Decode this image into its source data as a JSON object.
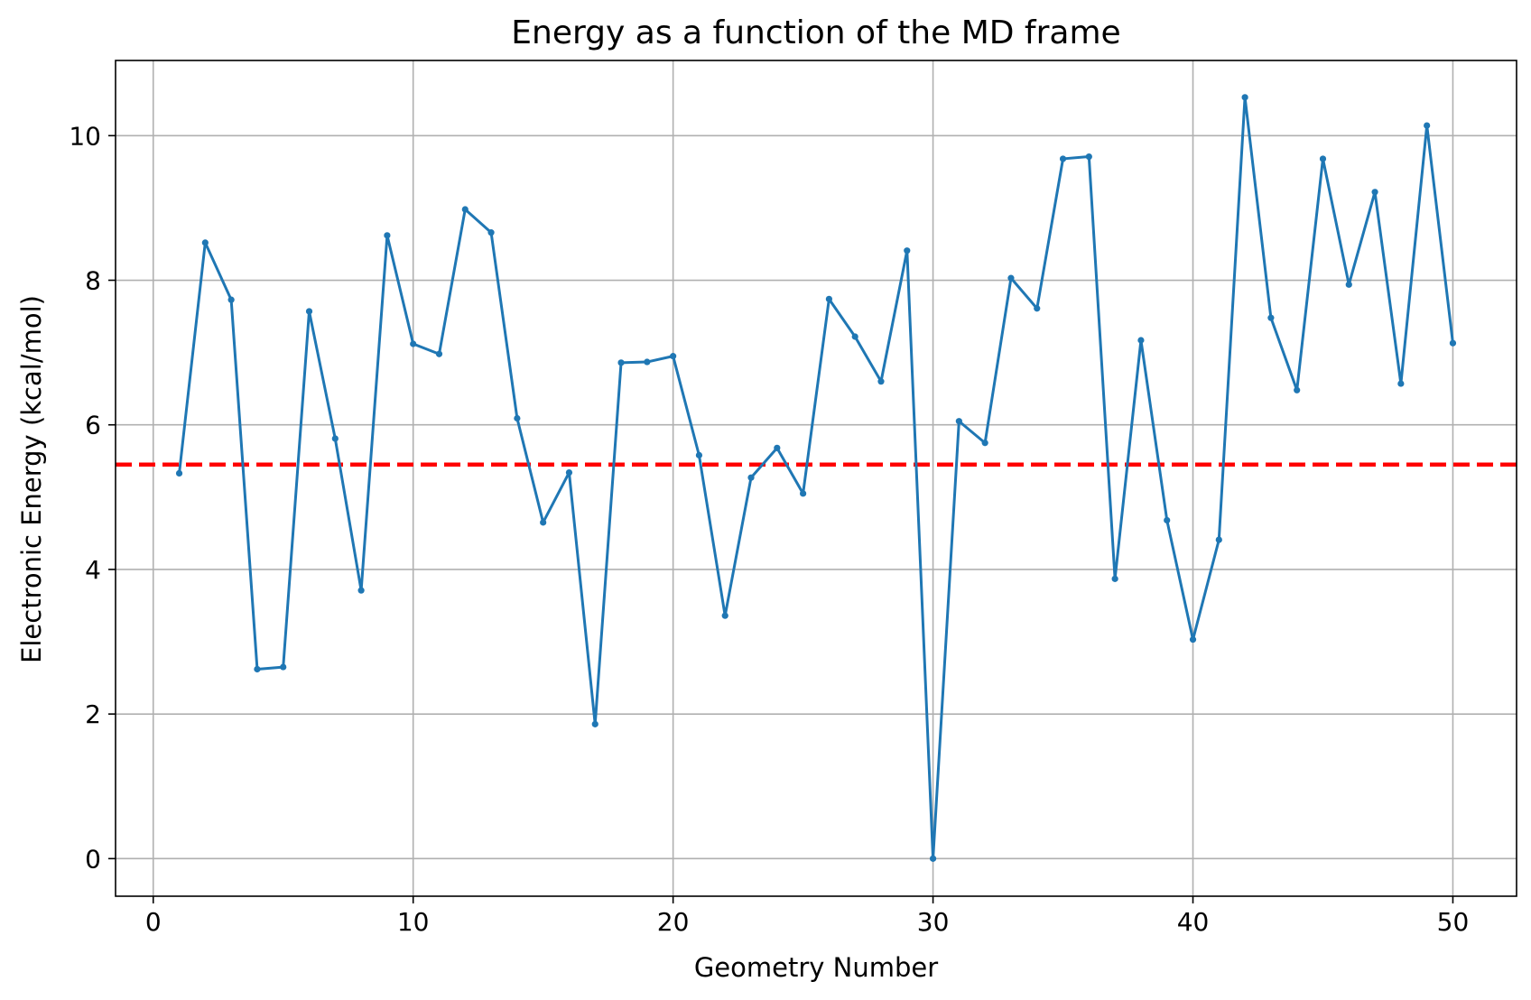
{
  "chart_data": {
    "type": "line",
    "title": "Energy as a function of the MD frame",
    "xlabel": "Geometry Number",
    "ylabel": "Electronic Energy (kcal/mol)",
    "xlim": [
      -1.45,
      52.45
    ],
    "ylim": [
      -0.52,
      11.04
    ],
    "x_ticks": [
      0,
      10,
      20,
      30,
      40,
      50
    ],
    "y_ticks": [
      0,
      2,
      4,
      6,
      8,
      10
    ],
    "grid": true,
    "series": [
      {
        "x": [
          1,
          2,
          3,
          4,
          5,
          6,
          7,
          8,
          9,
          10,
          11,
          12,
          13,
          14,
          15,
          16,
          17,
          18,
          19,
          20,
          21,
          22,
          23,
          24,
          25,
          26,
          27,
          28,
          29,
          30,
          31,
          32,
          33,
          34,
          35,
          36,
          37,
          38,
          39,
          40,
          41,
          42,
          43,
          44,
          45,
          46,
          47,
          48,
          49,
          50
        ],
        "y": [
          5.33,
          8.52,
          7.73,
          2.62,
          2.65,
          7.57,
          5.81,
          3.71,
          8.62,
          7.12,
          6.98,
          8.98,
          8.66,
          6.09,
          4.65,
          5.34,
          1.86,
          6.86,
          6.87,
          6.95,
          5.58,
          3.36,
          5.27,
          5.68,
          5.05,
          7.74,
          7.22,
          6.6,
          8.41,
          0.0,
          6.05,
          5.75,
          8.03,
          7.61,
          9.68,
          9.71,
          3.87,
          7.17,
          4.68,
          3.03,
          4.41,
          10.53,
          7.48,
          6.48,
          9.68,
          7.94,
          9.22,
          6.57,
          10.14,
          7.13
        ],
        "color": "#1f77b4"
      }
    ],
    "reference_lines": [
      {
        "orientation": "horizontal",
        "y": 5.45,
        "style": "dashed",
        "color": "#ff0000"
      }
    ],
    "colors": {
      "grid": "#b0b0b0",
      "axis": "#000000"
    }
  }
}
